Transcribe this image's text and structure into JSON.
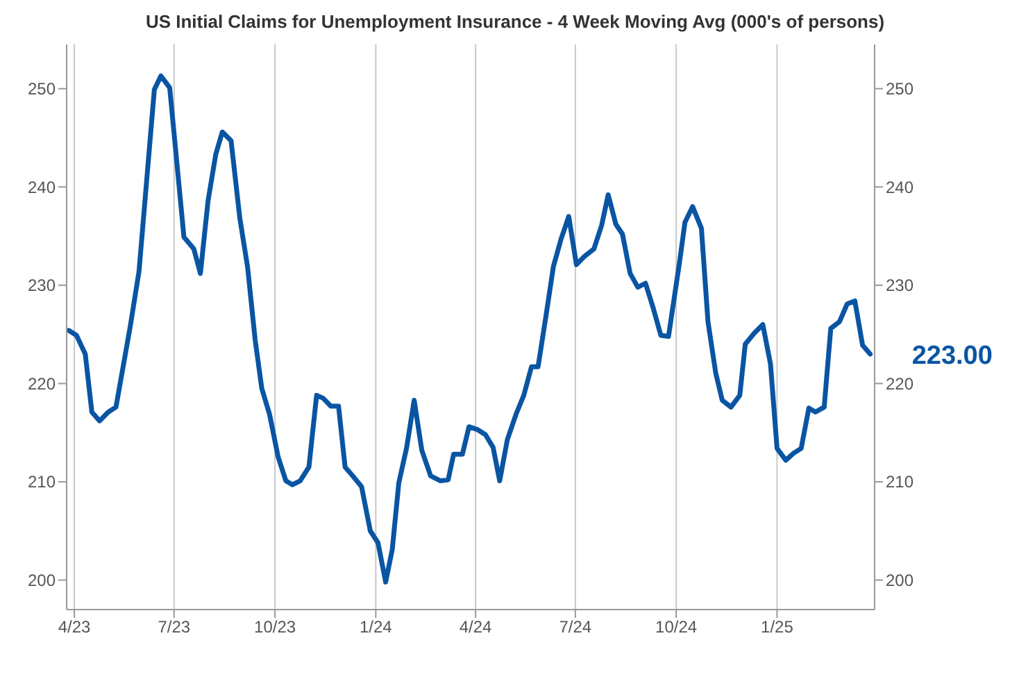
{
  "chart_data": {
    "type": "line",
    "title": "US Initial Claims for Unemployment Insurance - 4 Week Moving Avg (000's of persons)",
    "x": [
      "2023-03-27",
      "2023-04-03",
      "2023-04-11",
      "2023-04-17",
      "2023-04-24",
      "2023-05-02",
      "2023-05-09",
      "2023-05-22",
      "2023-05-30",
      "2023-06-13",
      "2023-06-19",
      "2023-06-27",
      "2023-07-10",
      "2023-07-19",
      "2023-07-25",
      "2023-08-01",
      "2023-08-08",
      "2023-08-14",
      "2023-08-22",
      "2023-08-30",
      "2023-09-06",
      "2023-09-13",
      "2023-09-19",
      "2023-09-26",
      "2023-10-04",
      "2023-10-11",
      "2023-10-17",
      "2023-10-24",
      "2023-11-01",
      "2023-11-08",
      "2023-11-14",
      "2023-11-21",
      "2023-11-28",
      "2023-12-04",
      "2023-12-11",
      "2023-12-19",
      "2023-12-27",
      "2024-01-03",
      "2024-01-10",
      "2024-01-16",
      "2024-01-22",
      "2024-01-29",
      "2024-02-05",
      "2024-02-12",
      "2024-02-20",
      "2024-02-29",
      "2024-03-07",
      "2024-03-12",
      "2024-03-20",
      "2024-03-26",
      "2024-04-03",
      "2024-04-10",
      "2024-04-17",
      "2024-04-23",
      "2024-04-30",
      "2024-05-08",
      "2024-05-15",
      "2024-05-22",
      "2024-05-28",
      "2024-06-04",
      "2024-06-11",
      "2024-06-18",
      "2024-06-25",
      "2024-07-02",
      "2024-07-09",
      "2024-07-18",
      "2024-07-25",
      "2024-07-31",
      "2024-08-07",
      "2024-08-13",
      "2024-08-20",
      "2024-08-27",
      "2024-09-03",
      "2024-09-10",
      "2024-09-17",
      "2024-09-24",
      "2024-10-04",
      "2024-10-09",
      "2024-10-16",
      "2024-10-24",
      "2024-10-30",
      "2024-11-06",
      "2024-11-12",
      "2024-11-20",
      "2024-11-28",
      "2024-12-03",
      "2024-12-11",
      "2024-12-19",
      "2024-12-26",
      "2025-01-01",
      "2025-01-09",
      "2025-01-16",
      "2025-01-23",
      "2025-01-30",
      "2025-02-05",
      "2025-02-13",
      "2025-02-19",
      "2025-02-27",
      "2025-03-06",
      "2025-03-13",
      "2025-03-20",
      "2025-03-27"
    ],
    "series": [
      {
        "color": "#0a55a3",
        "values": [
          225.4,
          224.9,
          223.0,
          217.1,
          216.2,
          217.1,
          217.6,
          225.8,
          231.4,
          249.9,
          251.3,
          250.1,
          234.9,
          233.7,
          231.2,
          238.6,
          243.3,
          245.6,
          244.7,
          236.8,
          231.9,
          224.4,
          219.5,
          216.9,
          212.5,
          210.1,
          209.7,
          210.1,
          211.5,
          218.8,
          218.5,
          217.7,
          217.7,
          211.5,
          210.6,
          209.5,
          205.0,
          203.8,
          199.8,
          203.1,
          209.9,
          213.4,
          218.3,
          213.2,
          210.6,
          210.1,
          210.2,
          212.8,
          212.8,
          215.6,
          215.3,
          214.8,
          213.5,
          210.1,
          214.3,
          216.9,
          218.8,
          221.7,
          221.7,
          226.7,
          231.9,
          234.7,
          237.0,
          232.1,
          232.9,
          233.7,
          236.1,
          239.2,
          236.2,
          235.2,
          231.2,
          229.8,
          230.2,
          227.7,
          224.9,
          224.8,
          232.3,
          236.4,
          238.0,
          235.8,
          226.3,
          221.1,
          218.3,
          217.6,
          218.8,
          224.0,
          225.1,
          226.0,
          222.0,
          213.4,
          212.2,
          212.9,
          213.4,
          217.5,
          217.1,
          217.6,
          225.6,
          226.3,
          228.1,
          228.4,
          223.9,
          223
        ]
      }
    ],
    "xlim": [
      "2023-03-25",
      "2025-03-31"
    ],
    "xticks": [
      {
        "value": "2023-04-01",
        "label": "4/23"
      },
      {
        "value": "2023-07-01",
        "label": "7/23"
      },
      {
        "value": "2023-10-01",
        "label": "10/23"
      },
      {
        "value": "2024-01-01",
        "label": "1/24"
      },
      {
        "value": "2024-04-01",
        "label": "4/24"
      },
      {
        "value": "2024-07-01",
        "label": "7/24"
      },
      {
        "value": "2024-10-01",
        "label": "10/24"
      },
      {
        "value": "2025-01-01",
        "label": "1/25"
      }
    ],
    "ylim": [
      197,
      254.5
    ],
    "yticks": [
      200,
      210,
      220,
      230,
      240,
      250
    ],
    "y2lim": [
      197,
      254.5
    ],
    "y2ticks": [
      200,
      210,
      220,
      230,
      240,
      250
    ],
    "grid": "x",
    "marker": "none",
    "line_style": "solid",
    "annotations": [
      {
        "text": "223.00",
        "x": "2025-03-27",
        "y": 223
      }
    ]
  }
}
